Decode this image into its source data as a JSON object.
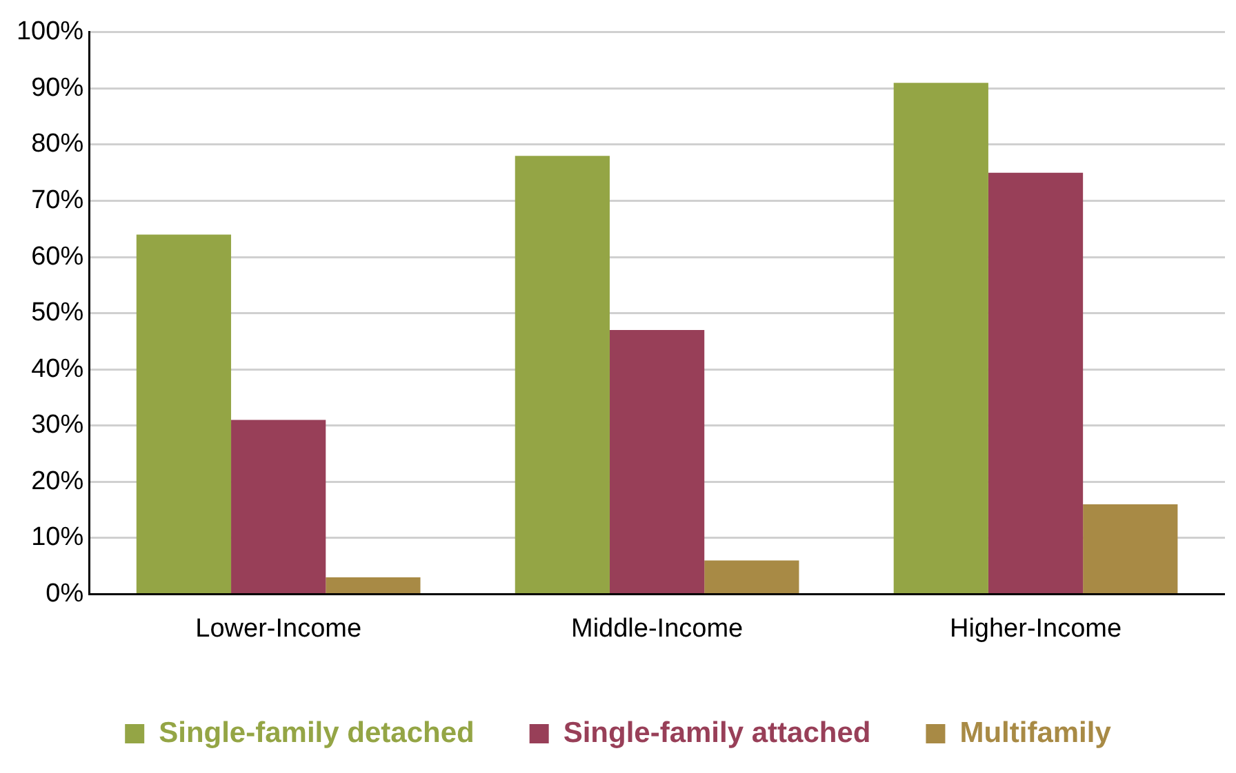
{
  "chart_data": {
    "type": "bar",
    "categories": [
      "Lower-Income",
      "Middle-Income",
      "Higher-Income"
    ],
    "series": [
      {
        "name": "Single-family detached",
        "color": "#94a545",
        "values": [
          64,
          78,
          91
        ]
      },
      {
        "name": "Single-family attached",
        "color": "#983f58",
        "values": [
          31,
          47,
          75
        ]
      },
      {
        "name": "Multifamily",
        "color": "#a88a45",
        "values": [
          3,
          6,
          16
        ]
      }
    ],
    "ylim": [
      0,
      100
    ],
    "yticks": [
      {
        "value": 0,
        "label": "0%"
      },
      {
        "value": 10,
        "label": "10%"
      },
      {
        "value": 20,
        "label": "20%"
      },
      {
        "value": 30,
        "label": "30%"
      },
      {
        "value": 40,
        "label": "40%"
      },
      {
        "value": 50,
        "label": "50%"
      },
      {
        "value": 60,
        "label": "60%"
      },
      {
        "value": 70,
        "label": "70%"
      },
      {
        "value": 80,
        "label": "80%"
      },
      {
        "value": 90,
        "label": "90%"
      },
      {
        "value": 100,
        "label": "100%"
      }
    ],
    "grid": "y",
    "legend": "bottom"
  }
}
